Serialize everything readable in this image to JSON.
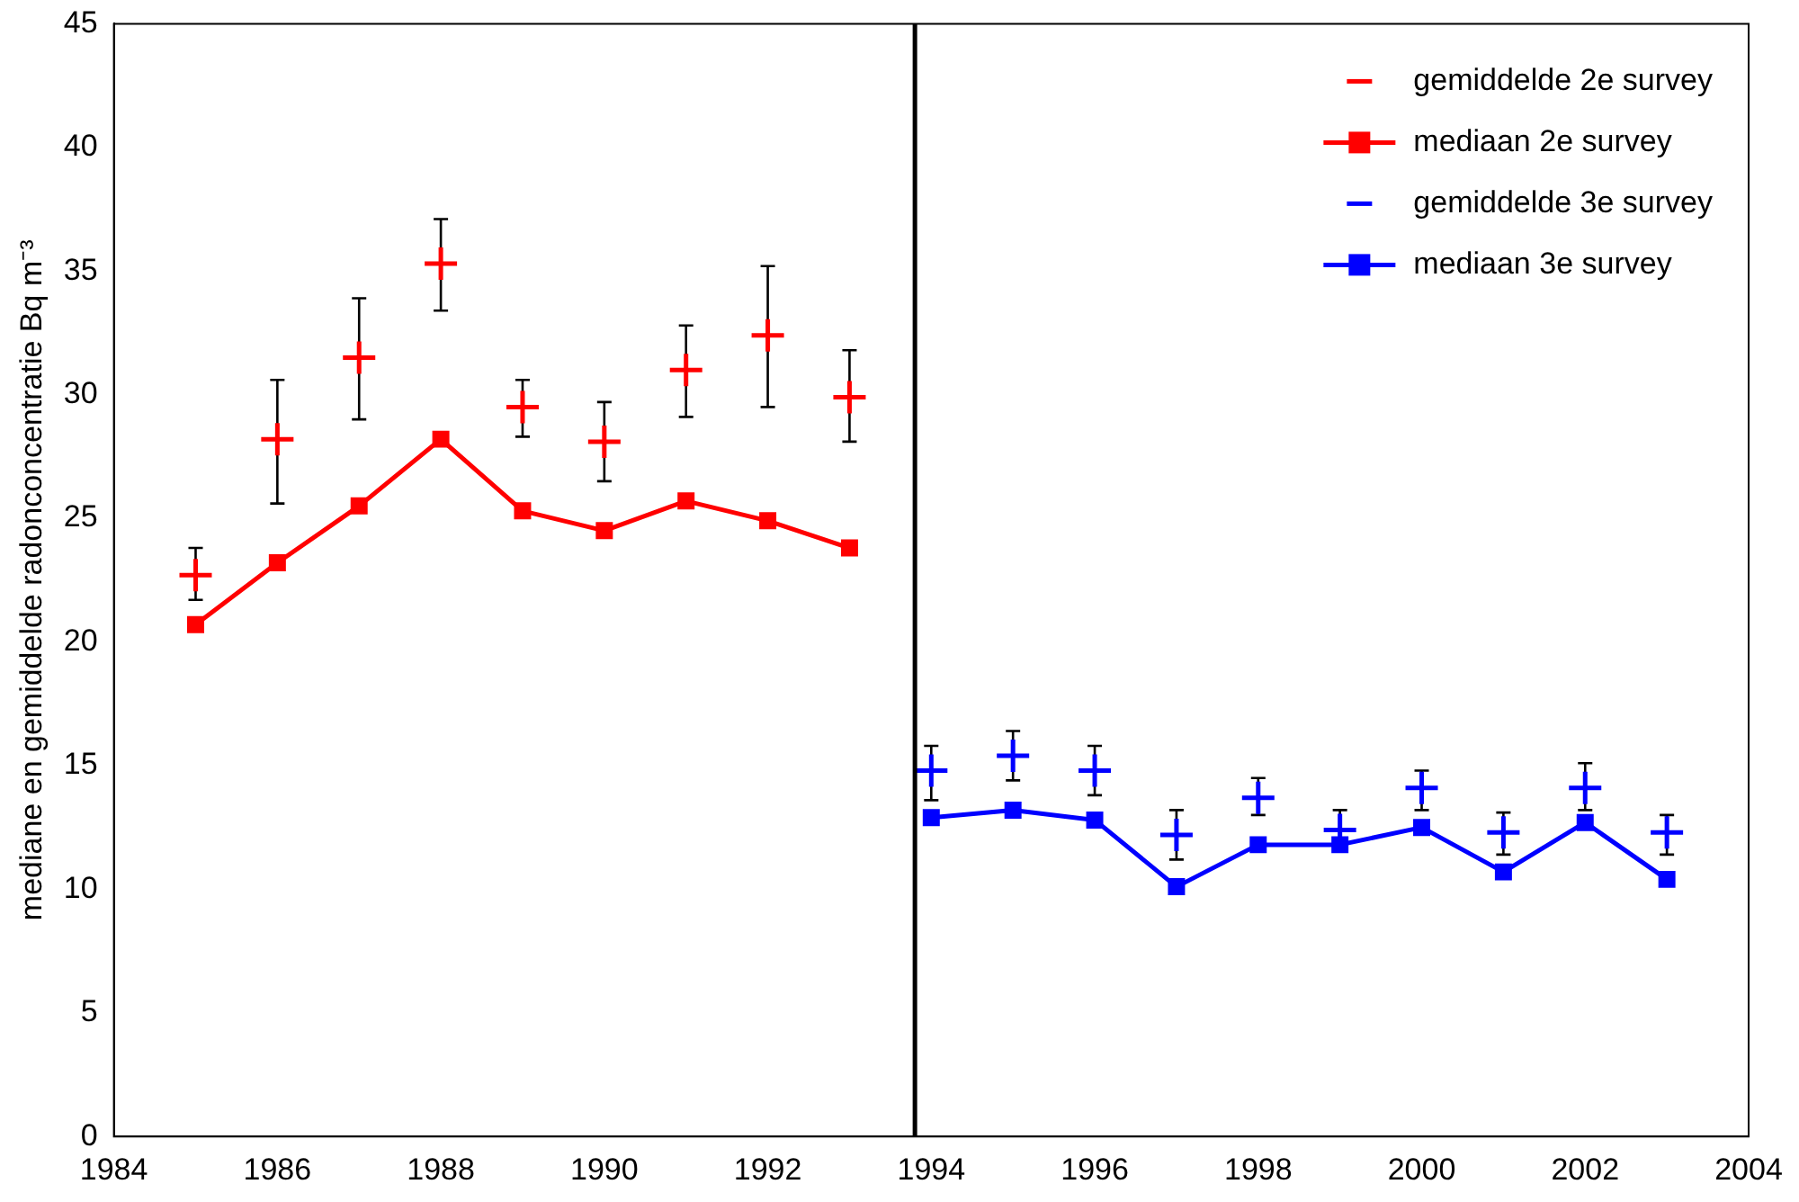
{
  "chart_data": {
    "type": "scatter",
    "ylabel": "mediane en gemiddelde radonconcentratie Bq m⁻³",
    "xlim": [
      1984,
      2004
    ],
    "xticks": [
      1984,
      1986,
      1988,
      1990,
      1992,
      1994,
      1996,
      1998,
      2000,
      2002,
      2004
    ],
    "ylim": [
      0,
      45
    ],
    "yticks": [
      0,
      5,
      10,
      15,
      20,
      25,
      30,
      35,
      40,
      45
    ],
    "grid": false,
    "legend": "top right",
    "ref_lines": [
      {
        "axis": "x",
        "value": 1993.8,
        "color": "#000000"
      }
    ],
    "series": [
      {
        "name": "gemiddelde 2e survey",
        "type": "scatter",
        "marker": "cross",
        "color": "#ff0000",
        "x": [
          1985,
          1986,
          1987,
          1988,
          1989,
          1990,
          1991,
          1992,
          1993
        ],
        "values": [
          22.7,
          28.2,
          31.5,
          35.3,
          29.5,
          28.1,
          31.0,
          32.4,
          29.9
        ],
        "errors": [
          [
            21.7,
            23.8
          ],
          [
            25.6,
            30.6
          ],
          [
            29.0,
            33.9
          ],
          [
            33.4,
            37.1
          ],
          [
            28.3,
            30.6
          ],
          [
            26.5,
            29.7
          ],
          [
            29.1,
            32.8
          ],
          [
            29.5,
            35.2
          ],
          [
            28.1,
            31.8
          ]
        ]
      },
      {
        "name": "mediaan 2e survey",
        "type": "line",
        "marker": "square",
        "color": "#ff0000",
        "x": [
          1985,
          1986,
          1987,
          1988,
          1989,
          1990,
          1991,
          1992,
          1993
        ],
        "values": [
          20.7,
          23.2,
          25.5,
          28.2,
          25.3,
          24.5,
          25.7,
          24.9,
          23.8
        ]
      },
      {
        "name": "gemiddelde 3e survey",
        "type": "scatter",
        "marker": "cross",
        "color": "#0000ff",
        "x": [
          1994,
          1995,
          1996,
          1997,
          1998,
          1999,
          2000,
          2001,
          2002,
          2003
        ],
        "values": [
          14.8,
          15.4,
          14.8,
          12.2,
          13.7,
          12.4,
          14.1,
          12.3,
          14.1,
          12.3
        ],
        "errors": [
          [
            13.6,
            15.8
          ],
          [
            14.4,
            16.4
          ],
          [
            13.8,
            15.8
          ],
          [
            11.2,
            13.2
          ],
          [
            13.0,
            14.5
          ],
          [
            12.4,
            13.2
          ],
          [
            13.2,
            14.8
          ],
          [
            11.4,
            13.1
          ],
          [
            13.2,
            15.1
          ],
          [
            11.4,
            13.0
          ]
        ]
      },
      {
        "name": "mediaan 3e survey",
        "type": "line",
        "marker": "square",
        "color": "#0000ff",
        "x": [
          1994,
          1995,
          1996,
          1997,
          1998,
          1999,
          2000,
          2001,
          2002,
          2003
        ],
        "values": [
          12.9,
          13.2,
          12.8,
          10.1,
          11.8,
          11.8,
          12.5,
          10.7,
          12.7,
          10.4
        ]
      }
    ]
  }
}
